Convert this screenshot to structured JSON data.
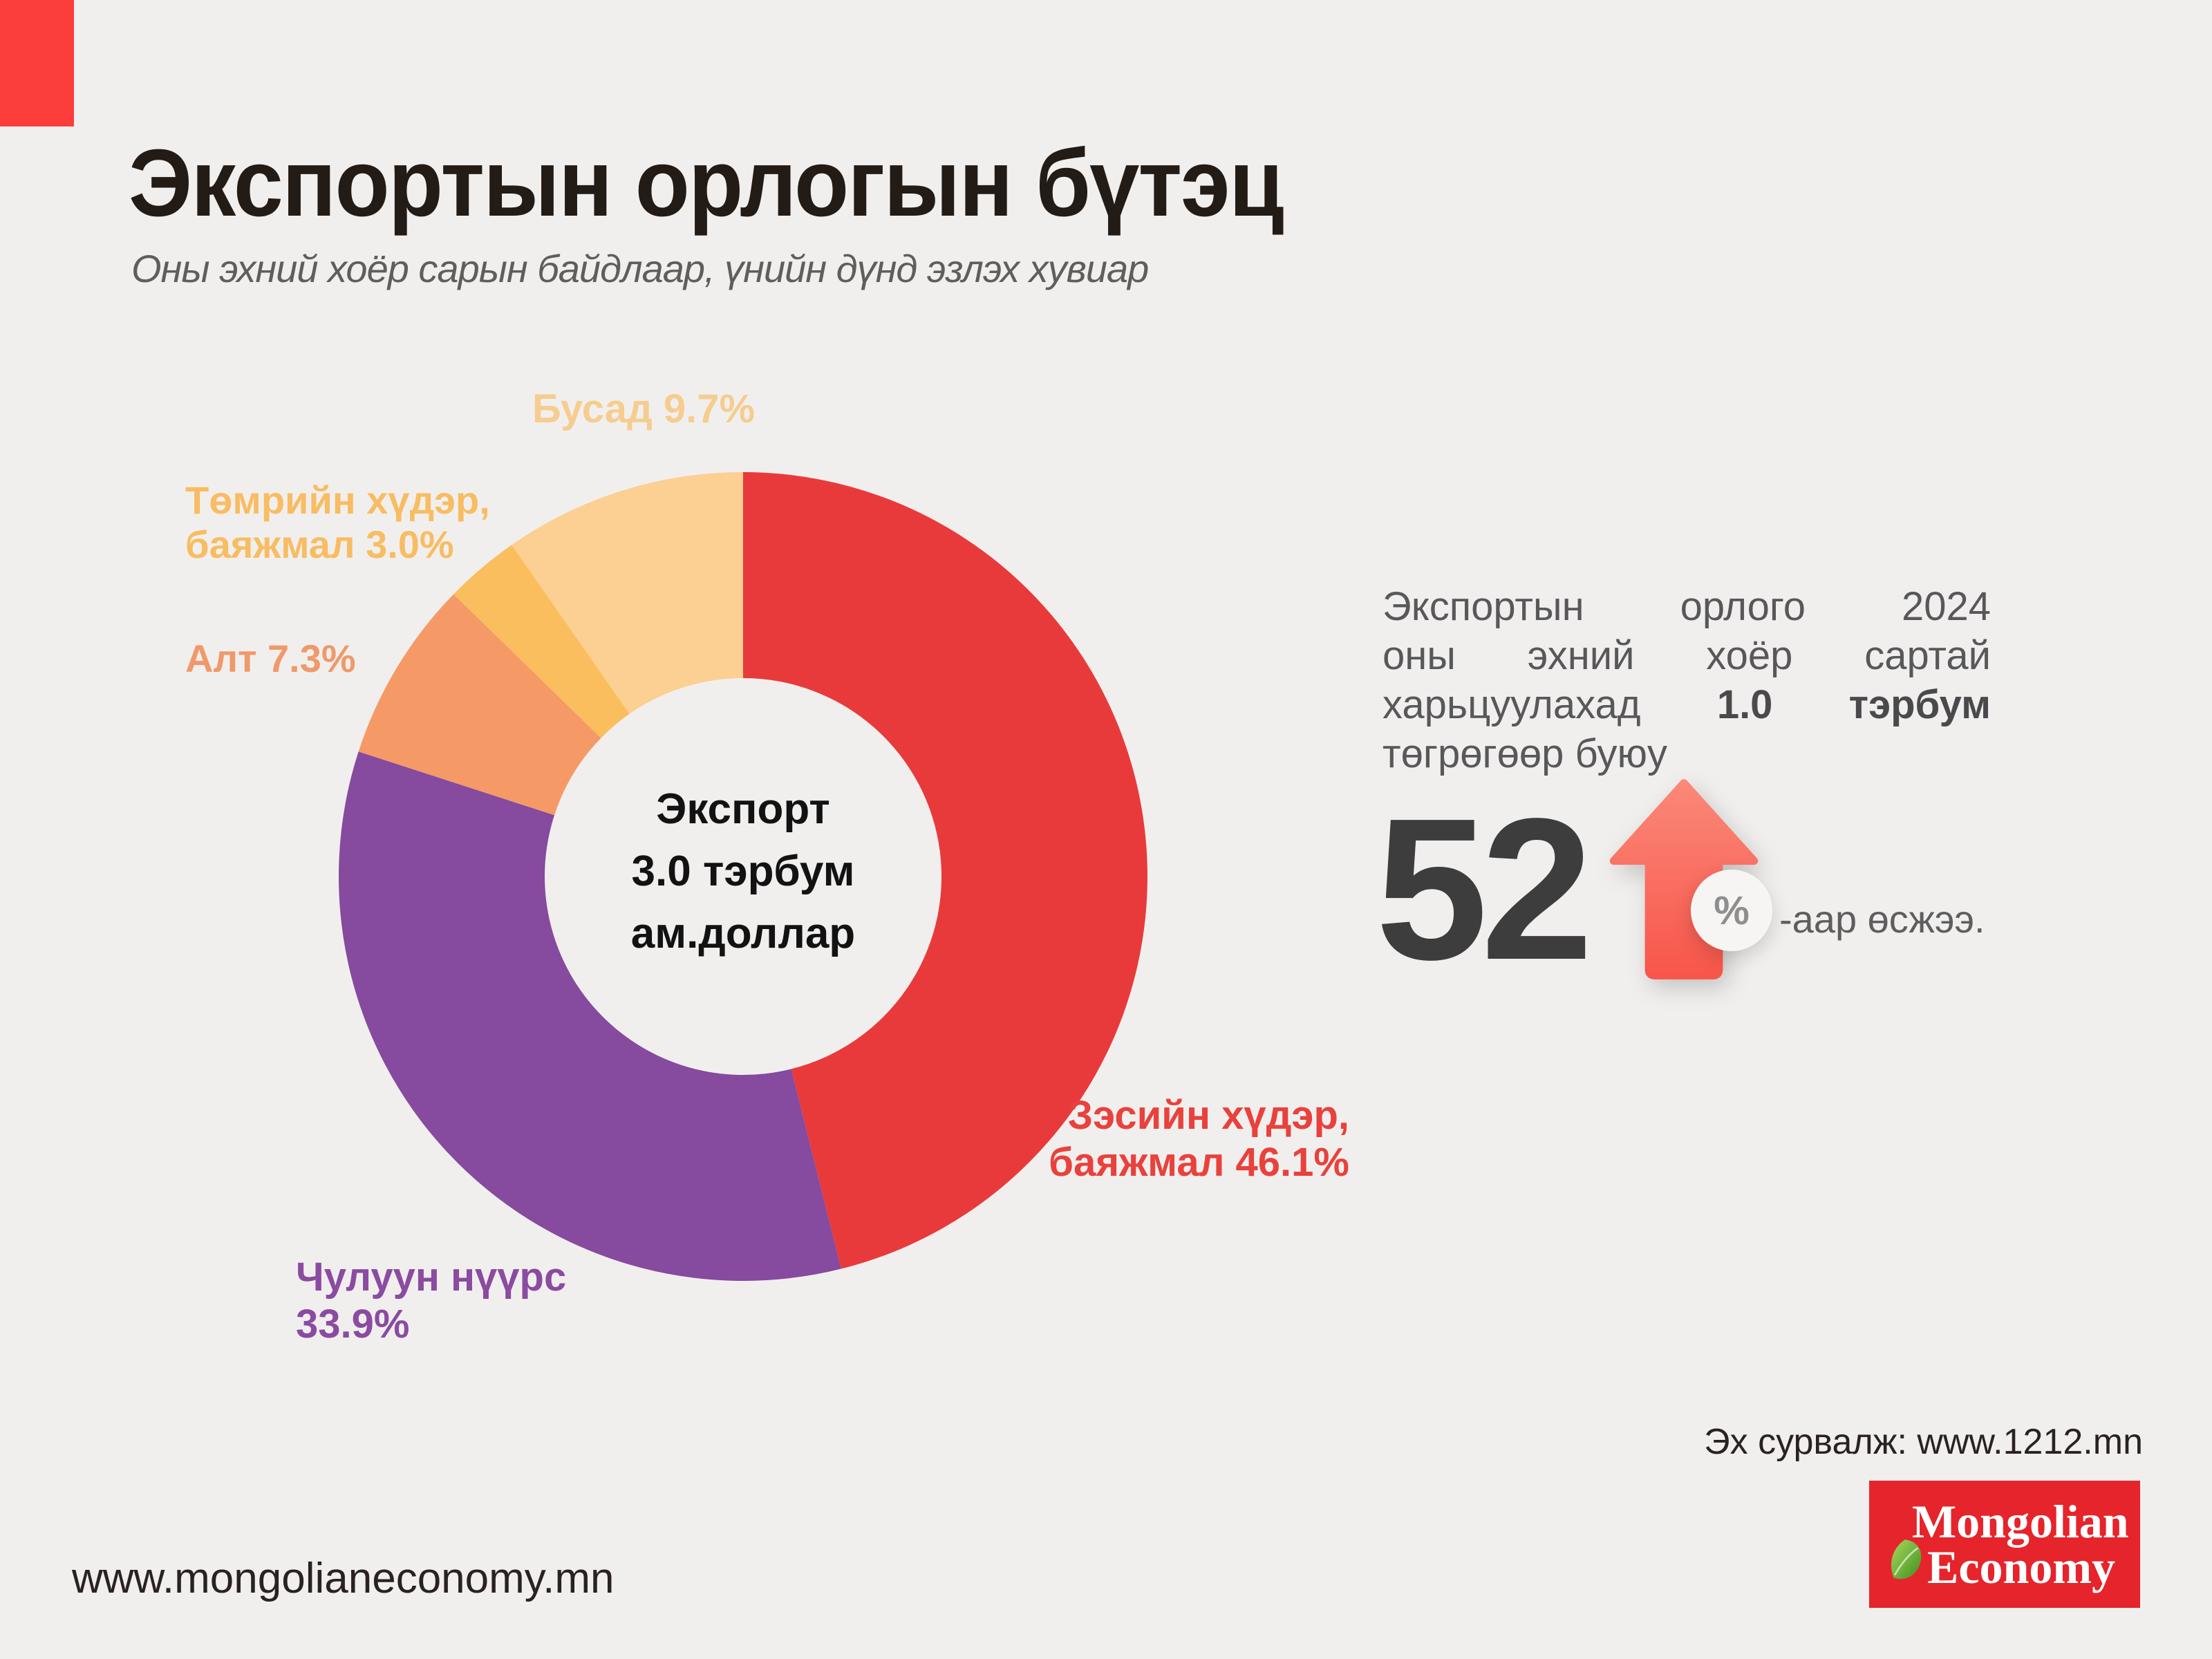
{
  "page": {
    "bg": "#F1EFEE",
    "accent_color": "#FB3E3C"
  },
  "header": {
    "title": "Экспортын орлогын бүтэц",
    "subtitle": "Оны эхний хоёр сарын байдлаар, үнийн дүнд эзлэх хувиар"
  },
  "chart_data": {
    "type": "pie",
    "donut": true,
    "title": "Экспортын орлогын бүтэц",
    "categories": [
      "Зэсийн хүдэр, баяжмал",
      "Чулуун нүүрс",
      "Алт",
      "Төмрийн хүдэр, баяжмал",
      "Бусад"
    ],
    "values": [
      46.1,
      33.9,
      7.3,
      3.0,
      9.7
    ],
    "colors": [
      "#E93A3B",
      "#864A9E",
      "#F59A66",
      "#FBBE5E",
      "#FCCF92"
    ],
    "start_angle_deg": 0,
    "direction": "clockwise",
    "donut_hole_ratio": 0.49,
    "center_label": {
      "line1": "Экспорт",
      "line2": "3.0 тэрбум",
      "line3": "ам.доллар"
    }
  },
  "callouts": {
    "zesiin": {
      "line1": "Зэсийн хүдэр,",
      "line2": "баяжмал 46.1%"
    },
    "chuluun": {
      "line1": "Чулуун нүүрс",
      "line2": "33.9%"
    },
    "alt": {
      "line1": "Алт 7.3%"
    },
    "tumriin": {
      "line1": "Төмрийн хүдэр,",
      "line2": "баяжмал 3.0%"
    },
    "busad": {
      "line1": "Бусад 9.7%"
    }
  },
  "insight": {
    "line1": "Экспортын орлого 2024",
    "line2": "оны эхний хоёр сартай",
    "line3_normal": "харьцуулахад",
    "line3_bold": "1.0 тэрбум",
    "line4": "төгрөгөөр буюу",
    "big_number": "52",
    "badge": "%",
    "tail": "-аар өсжээ."
  },
  "footer": {
    "source": "Эх сурвалж: www.1212.mn",
    "website": "www.mongolianeconomy.mn",
    "logo": {
      "line1": "Mongolian",
      "line2": "Economy"
    }
  }
}
